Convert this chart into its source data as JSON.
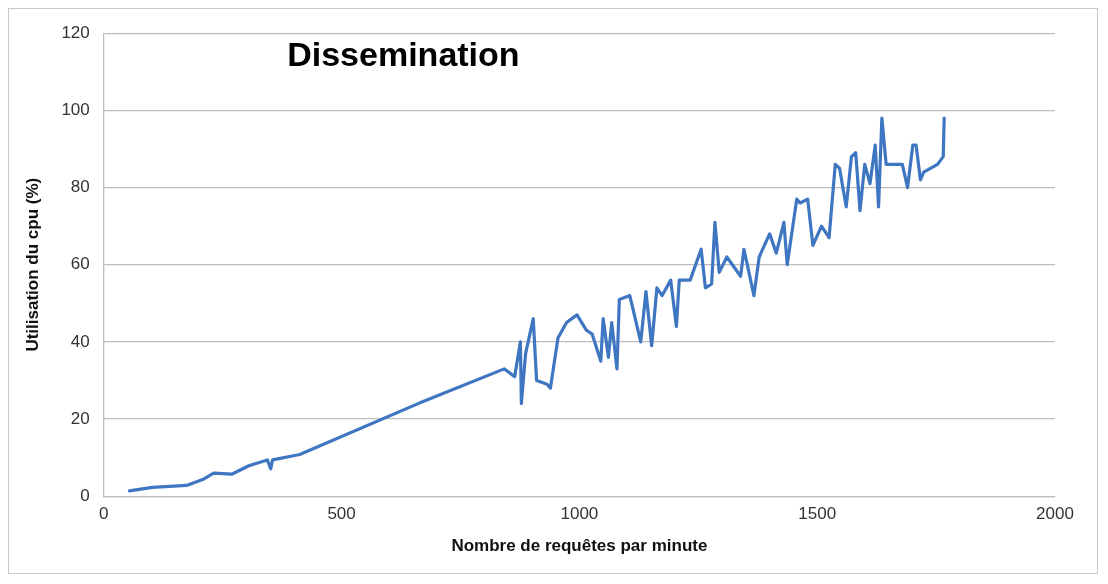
{
  "chart_data": {
    "type": "line",
    "title": "Dissemination",
    "xlabel": "Nombre de requêtes par minute",
    "ylabel": "Utilisation du cpu (%)",
    "xlim": [
      0,
      2000
    ],
    "xticks": [
      0,
      500,
      1000,
      1500,
      2000
    ],
    "ylim": [
      0,
      120
    ],
    "yticks": [
      0,
      20,
      40,
      60,
      80,
      100,
      120
    ],
    "grid": "y",
    "marker": "none",
    "line_style": "solid",
    "series": [
      {
        "color": "#3f76c1",
        "x": [
          54,
          102,
          174,
          208,
          231,
          269,
          305,
          344,
          351,
          355,
          412,
          661,
          842,
          864,
          876,
          878,
          887,
          903,
          910,
          932,
          939,
          955,
          973,
          995,
          1015,
          1027,
          1045,
          1050,
          1061,
          1068,
          1079,
          1084,
          1106,
          1129,
          1140,
          1152,
          1163,
          1174,
          1192,
          1204,
          1210,
          1233,
          1256,
          1265,
          1278,
          1285,
          1294,
          1310,
          1339,
          1346,
          1367,
          1378,
          1400,
          1414,
          1430,
          1437,
          1457,
          1464,
          1480,
          1491,
          1509,
          1525,
          1538,
          1547,
          1561,
          1572,
          1581,
          1590,
          1600,
          1611,
          1622,
          1629,
          1636,
          1645,
          1679,
          1690,
          1701,
          1708,
          1717,
          1724,
          1753,
          1765,
          1767
        ],
        "values": [
          1.4,
          2.3,
          2.8,
          4.3,
          6,
          5.7,
          7.9,
          9.4,
          7.1,
          9.4,
          10.8,
          24,
          33,
          31,
          40,
          24,
          37,
          46,
          30,
          29,
          28,
          41,
          45,
          47,
          43,
          42,
          35,
          46,
          36,
          45,
          33,
          51,
          52,
          40,
          53,
          39,
          54,
          52,
          56,
          44,
          56,
          56,
          64,
          54,
          55,
          71,
          58,
          62,
          57,
          64,
          52,
          62,
          68,
          63,
          71,
          60,
          77,
          76,
          77,
          65,
          70,
          67,
          86,
          85,
          75,
          88,
          89,
          74,
          86,
          81,
          91,
          75,
          98,
          86,
          86,
          80,
          91,
          91,
          82,
          84,
          86,
          88,
          98
        ]
      }
    ]
  }
}
